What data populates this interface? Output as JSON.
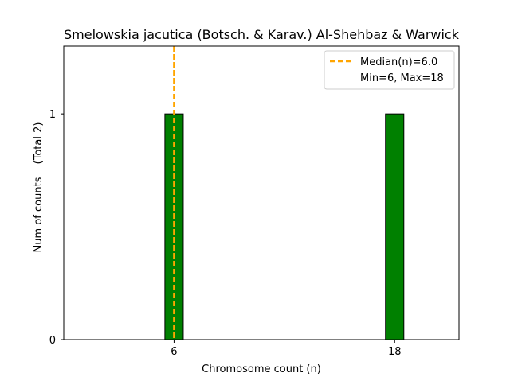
{
  "chart_data": {
    "type": "bar",
    "title": "Smelowskia jacutica (Botsch. & Karav.) Al-Shehbaz & Warwick",
    "xlabel": "Chromosome count (n)",
    "ylabel": "Num of counts",
    "ylabel_extra": "(Total 2)",
    "categories": [
      6,
      18
    ],
    "values": [
      1,
      1
    ],
    "xlim": [
      0,
      21.5
    ],
    "ylim": [
      0,
      1.3
    ],
    "xticks": [
      6,
      18
    ],
    "yticks": [
      0,
      1
    ],
    "bar_color": "#008000",
    "bar_edge_color": "#000000",
    "median": 6.0,
    "median_color": "#FFA500",
    "legend": {
      "position": "top-right",
      "median_label": "Median(n)=6.0",
      "minmax_label": "Min=6, Max=18"
    },
    "grid": false
  }
}
